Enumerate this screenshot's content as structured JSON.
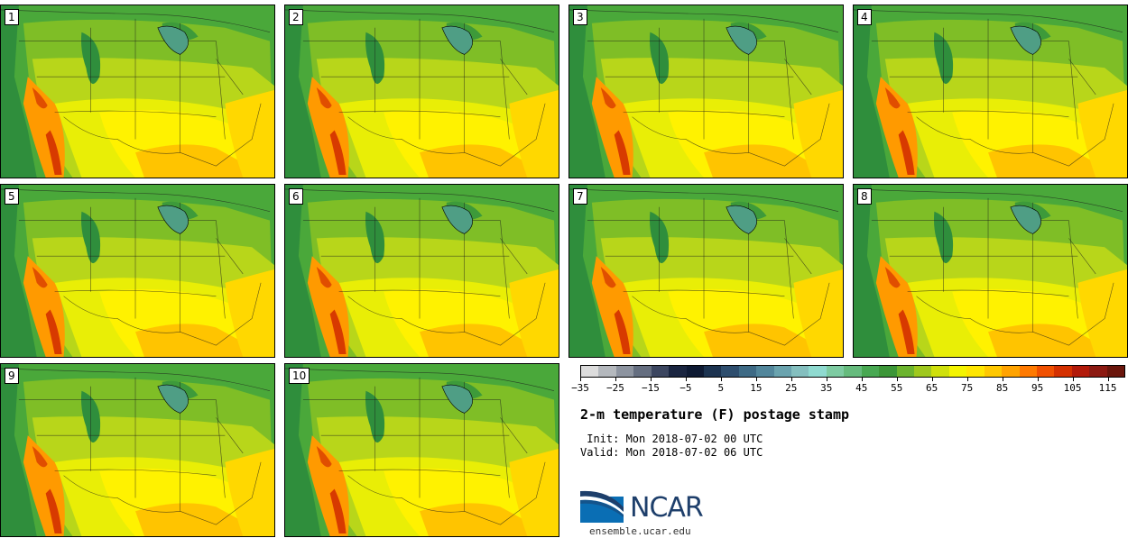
{
  "title": "2-m temperature (F) postage stamp",
  "init_text": " Init: Mon 2018-07-02 00 UTC",
  "valid_text": "Valid: Mon 2018-07-02 06 UTC",
  "logo": {
    "text": "NCAR",
    "site": "ensemble.ucar.edu"
  },
  "members": [
    "1",
    "2",
    "3",
    "4",
    "5",
    "6",
    "7",
    "8",
    "9",
    "10"
  ],
  "colorbar": {
    "min": -35,
    "max": 120,
    "step": 5,
    "tick_labels": [
      "-35",
      "-25",
      "-15",
      "-5",
      "5",
      "15",
      "25",
      "35",
      "45",
      "55",
      "65",
      "75",
      "85",
      "95",
      "105",
      "115"
    ],
    "colors": [
      "#dcdcdc",
      "#b4b8bd",
      "#8d94a0",
      "#656e80",
      "#3c4660",
      "#1a2540",
      "#0e1a33",
      "#1c3350",
      "#2e4e6e",
      "#3e6a85",
      "#52869b",
      "#6aa3ae",
      "#84bfbf",
      "#8fdad0",
      "#7ecba2",
      "#66bb7d",
      "#48a852",
      "#3c9638",
      "#6cb42e",
      "#9fc81e",
      "#cfe00c",
      "#f4f400",
      "#ffe600",
      "#ffc800",
      "#ffa300",
      "#ff7a00",
      "#f05000",
      "#d43000",
      "#b21a0a",
      "#8c1a12",
      "#6a160c"
    ]
  }
}
